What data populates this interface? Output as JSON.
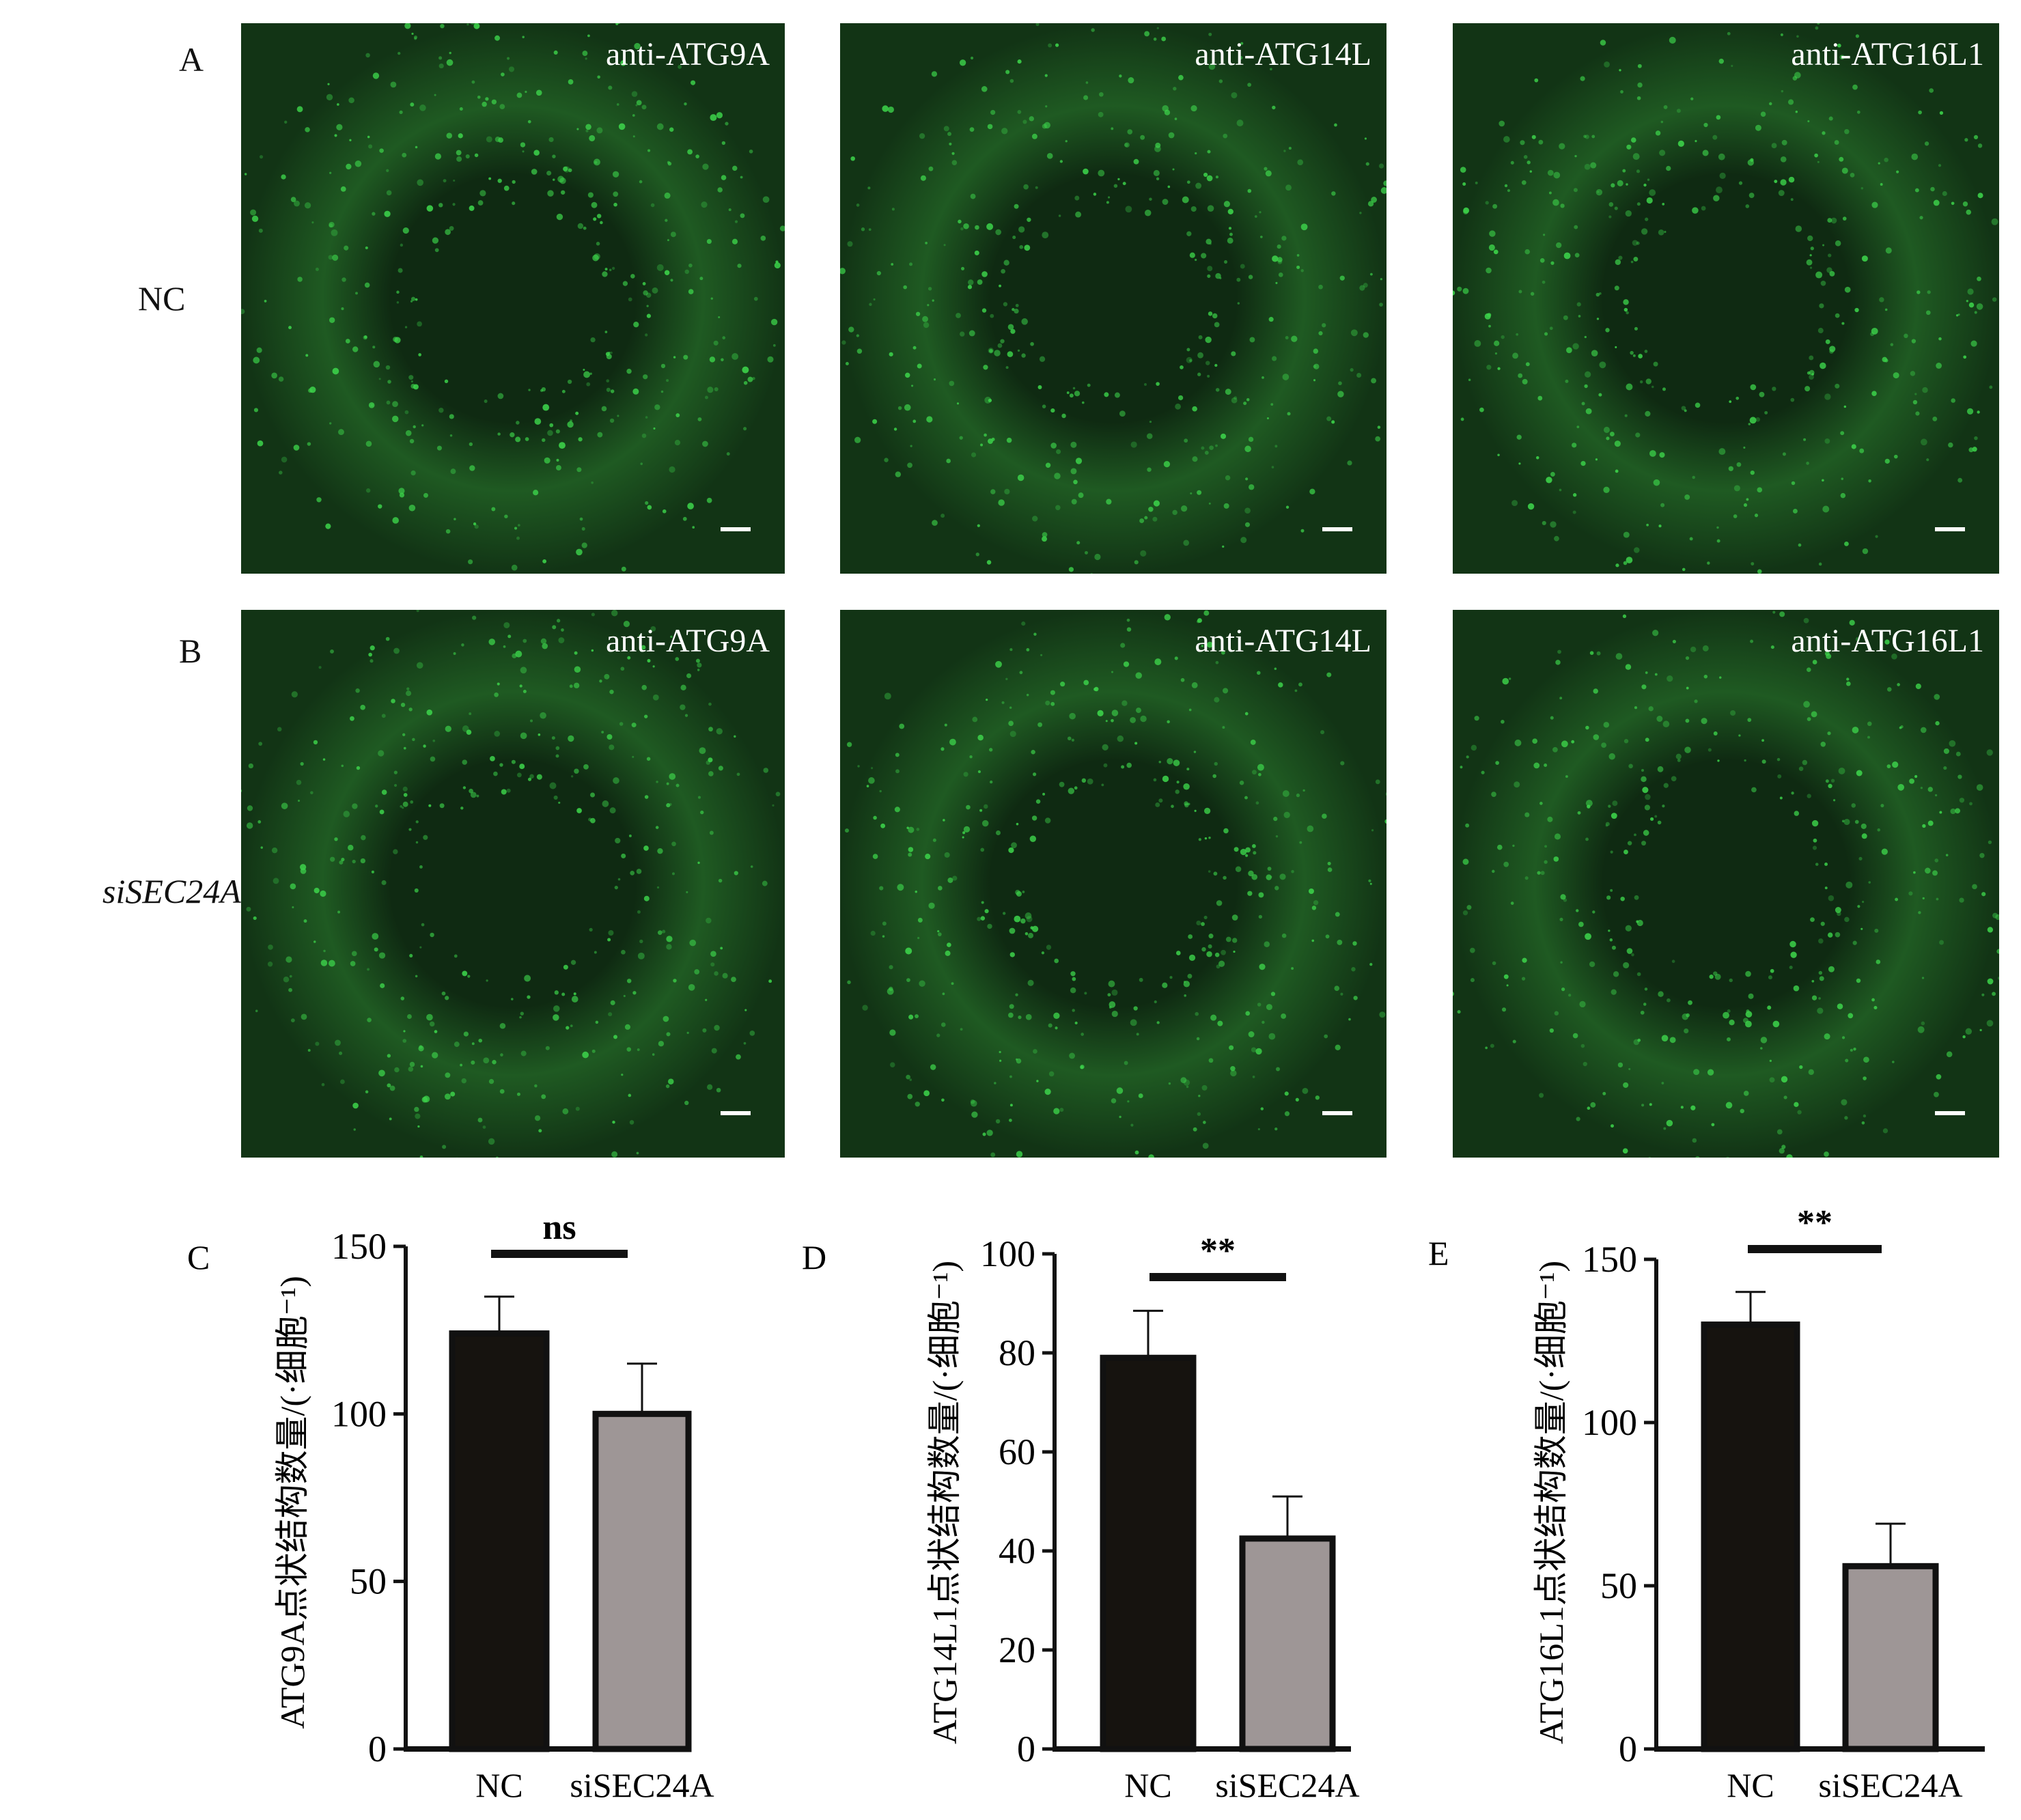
{
  "rows": [
    {
      "letter": "A",
      "condition": "NC",
      "italic": false,
      "panels": [
        "anti-ATG9A",
        "anti-ATG14L",
        "anti-ATG16L1"
      ]
    },
    {
      "letter": "B",
      "condition": "siSEC24A",
      "italic": true,
      "panels": [
        "anti-ATG9A",
        "anti-ATG14L",
        "anti-ATG16L1"
      ]
    }
  ],
  "colors": {
    "micrograph_bg": "#0f2a12",
    "signal": "#3cd24a",
    "nc_bar": "#16130f",
    "si_bar": "#9e9696"
  },
  "chart_data": [
    {
      "type": "bar",
      "panel": "C",
      "categories": [
        "NC",
        "siSEC24A"
      ],
      "values": [
        124,
        100
      ],
      "errors": [
        11,
        15
      ],
      "ylabel": "ATG9A点状结构数量/(·细胞⁻¹)",
      "ylim": [
        0,
        150
      ],
      "yticks": [
        0,
        50,
        100,
        150
      ],
      "significance": "ns"
    },
    {
      "type": "bar",
      "panel": "D",
      "categories": [
        "NC",
        "siSEC24A"
      ],
      "values": [
        79,
        42.5
      ],
      "errors": [
        9.5,
        8.5
      ],
      "ylabel": "ATG14L1点状结构数量/(·细胞⁻¹)",
      "ylim": [
        0,
        100
      ],
      "yticks": [
        0,
        20,
        40,
        60,
        80,
        100
      ],
      "significance": "**"
    },
    {
      "type": "bar",
      "panel": "E",
      "categories": [
        "NC",
        "siSEC24A"
      ],
      "values": [
        130,
        56
      ],
      "errors": [
        10,
        13
      ],
      "ylabel": "ATG16L1点状结构数量/(·细胞⁻¹)",
      "ylim": [
        0,
        150
      ],
      "yticks": [
        0,
        50,
        100,
        150
      ],
      "significance": "**"
    }
  ]
}
